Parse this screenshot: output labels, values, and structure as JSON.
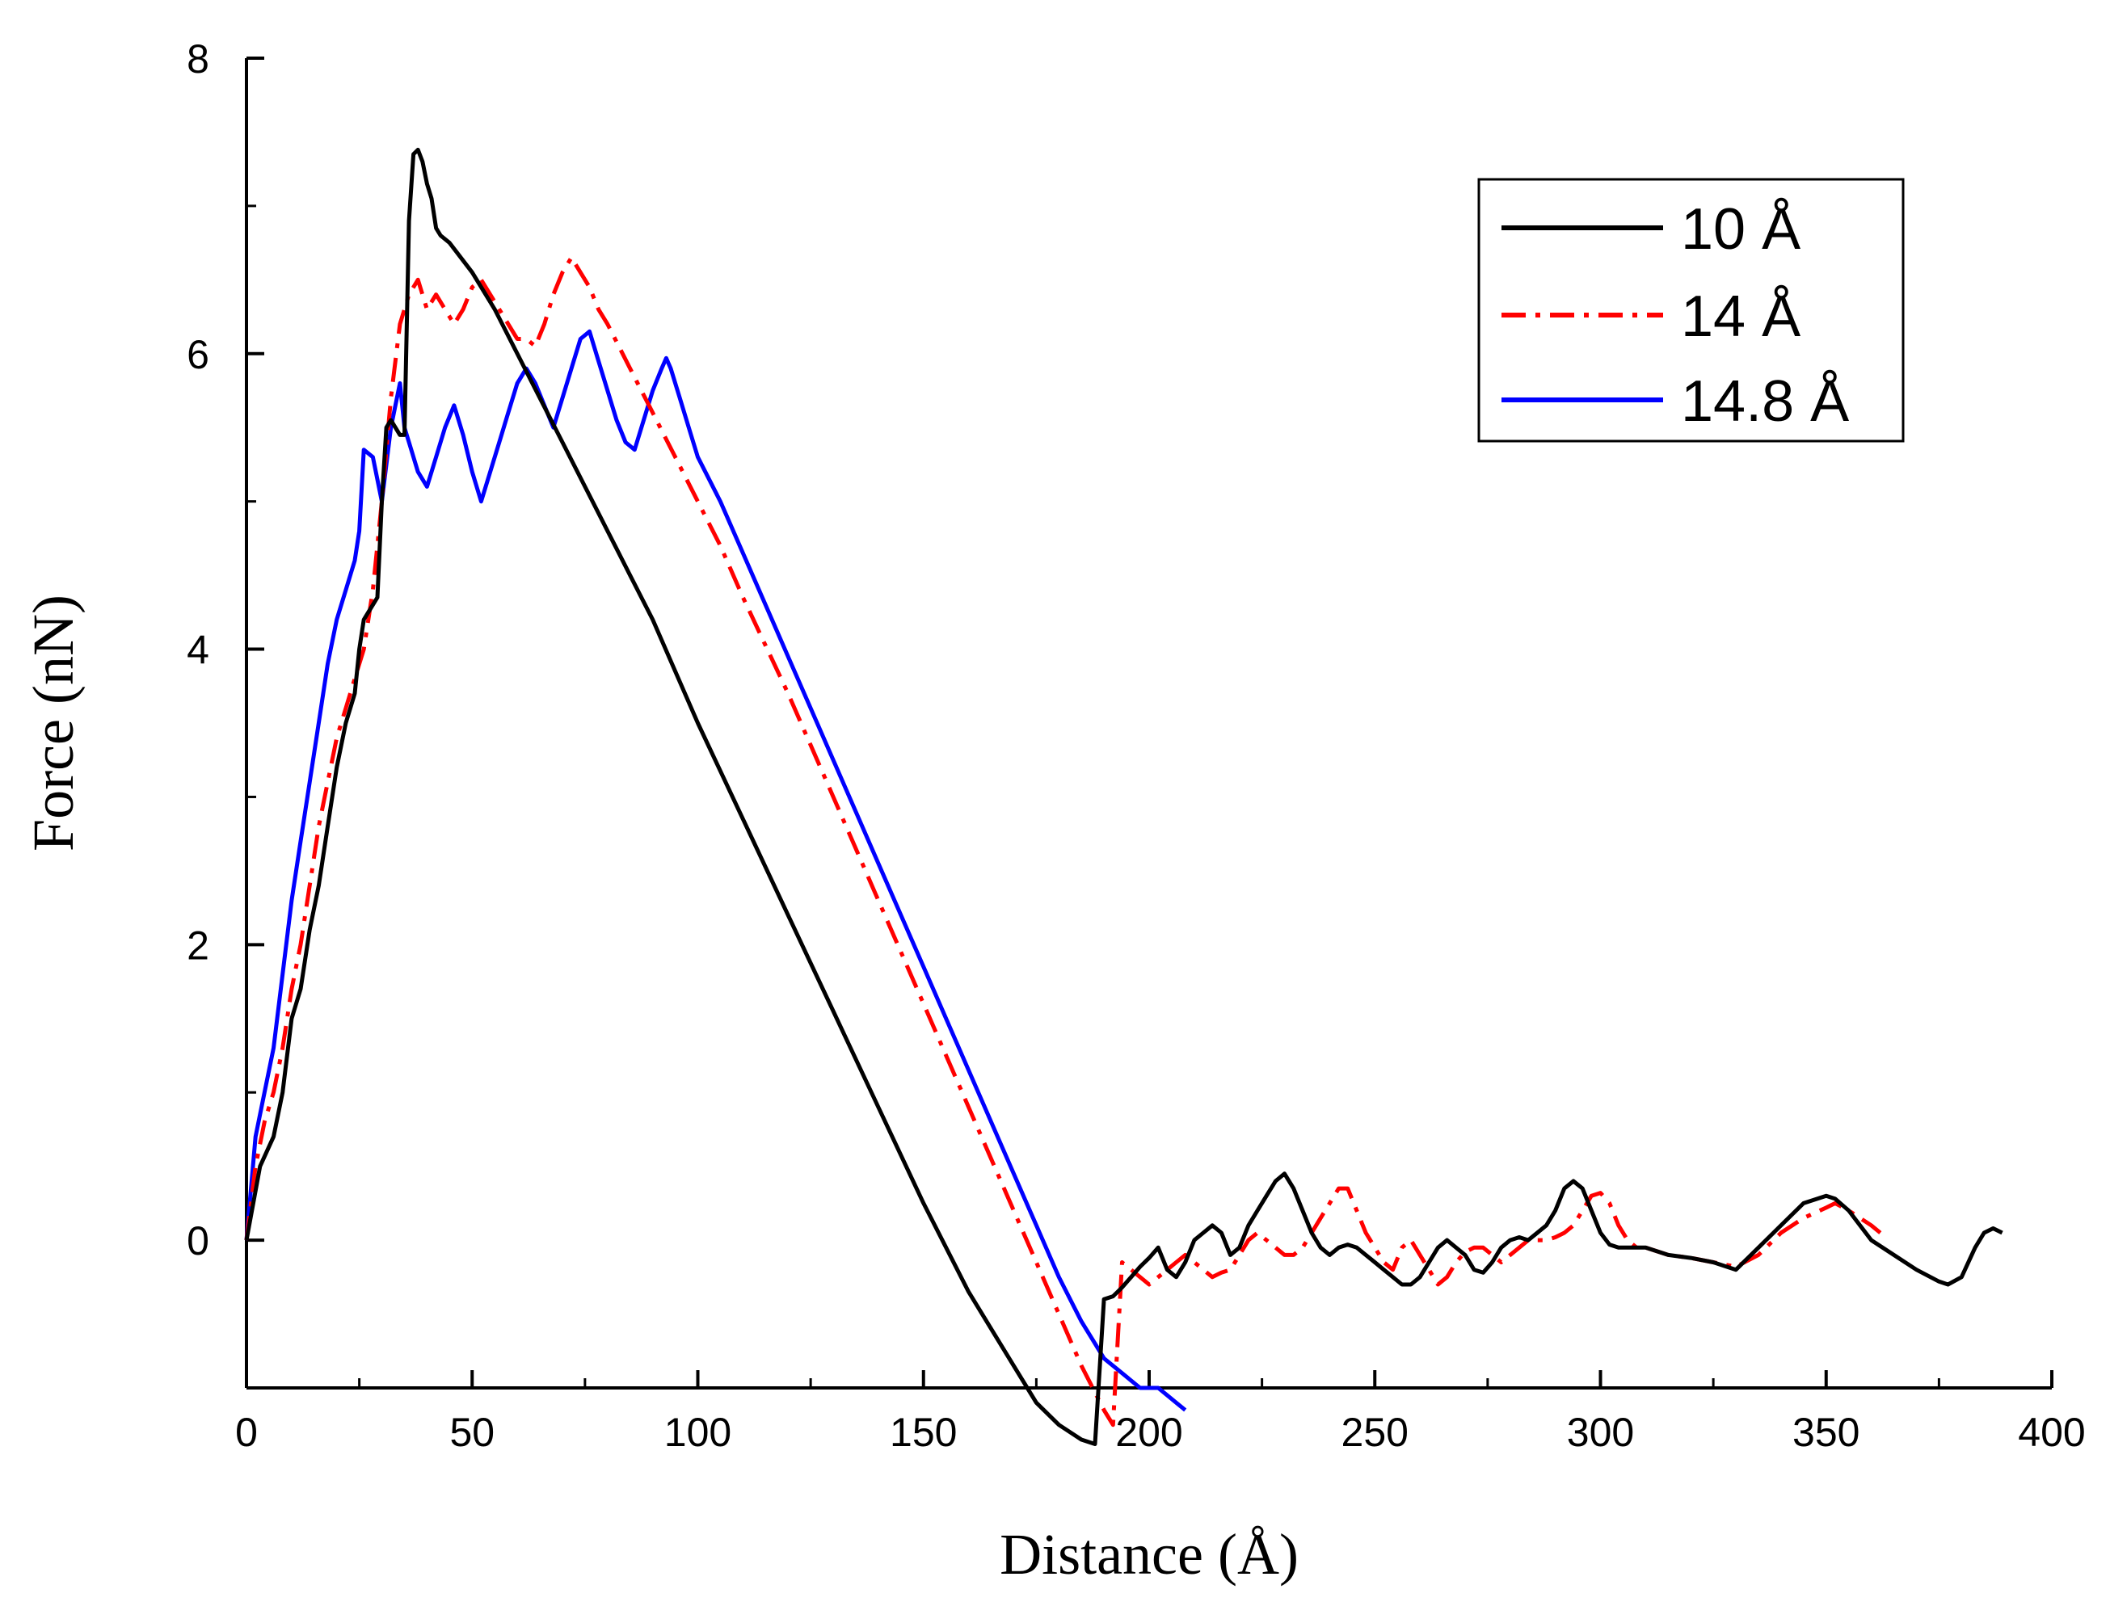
{
  "chart_data": {
    "type": "line",
    "title": "",
    "xlabel": "Distance (Å)",
    "ylabel": "Force (nN)",
    "xlim": [
      0,
      400
    ],
    "ylim": [
      -1,
      8
    ],
    "xticks": [
      0,
      50,
      100,
      150,
      200,
      250,
      300,
      350,
      400
    ],
    "yticks": [
      0,
      2,
      4,
      6,
      8
    ],
    "grid": false,
    "legend_position": "top-right",
    "series": [
      {
        "name": "10 Å",
        "color": "#000000",
        "style": "solid",
        "x": [
          0,
          3,
          6,
          8,
          10,
          12,
          14,
          16,
          18,
          19,
          20,
          22,
          24,
          25,
          26,
          27,
          28,
          29,
          30,
          31,
          32,
          33,
          34,
          35,
          36,
          37,
          38,
          39,
          40,
          41,
          42,
          43,
          45,
          50,
          55,
          60,
          65,
          70,
          75,
          80,
          85,
          90,
          95,
          100,
          110,
          120,
          130,
          140,
          150,
          160,
          170,
          175,
          180,
          185,
          188,
          190,
          192,
          194,
          196,
          198,
          200,
          202,
          204,
          206,
          208,
          210,
          212,
          214,
          216,
          218,
          220,
          222,
          224,
          226,
          228,
          230,
          232,
          234,
          236,
          238,
          240,
          242,
          244,
          246,
          248,
          250,
          252,
          254,
          256,
          258,
          260,
          262,
          264,
          266,
          268,
          270,
          272,
          274,
          276,
          278,
          280,
          282,
          284,
          286,
          288,
          290,
          292,
          294,
          296,
          298,
          300,
          302,
          304,
          306,
          308,
          310,
          315,
          320,
          325,
          330,
          335,
          340,
          345,
          350,
          352,
          355,
          360,
          365,
          370,
          375,
          377,
          380,
          383,
          385,
          387,
          389
        ],
        "y": [
          0,
          0.5,
          0.7,
          1.0,
          1.5,
          1.7,
          2.1,
          2.4,
          2.8,
          3.0,
          3.2,
          3.5,
          3.7,
          4.0,
          4.2,
          4.25,
          4.3,
          4.35,
          5.0,
          5.5,
          5.55,
          5.5,
          5.45,
          5.45,
          6.9,
          7.35,
          7.38,
          7.3,
          7.15,
          7.05,
          6.85,
          6.8,
          6.75,
          6.55,
          6.3,
          6.0,
          5.7,
          5.4,
          5.1,
          4.8,
          4.5,
          4.2,
          3.85,
          3.5,
          2.85,
          2.2,
          1.55,
          0.9,
          0.25,
          -0.35,
          -0.85,
          -1.1,
          -1.25,
          -1.35,
          -1.38,
          -0.4,
          -0.38,
          -0.32,
          -0.25,
          -0.18,
          -0.12,
          -0.05,
          -0.2,
          -0.25,
          -0.15,
          0.0,
          0.05,
          0.1,
          0.05,
          -0.1,
          -0.05,
          0.1,
          0.2,
          0.3,
          0.4,
          0.45,
          0.35,
          0.2,
          0.05,
          -0.05,
          -0.1,
          -0.05,
          -0.03,
          -0.05,
          -0.1,
          -0.15,
          -0.2,
          -0.25,
          -0.3,
          -0.3,
          -0.25,
          -0.15,
          -0.05,
          0.0,
          -0.05,
          -0.1,
          -0.2,
          -0.22,
          -0.15,
          -0.05,
          0.0,
          0.02,
          0.0,
          0.05,
          0.1,
          0.2,
          0.35,
          0.4,
          0.35,
          0.2,
          0.05,
          -0.03,
          -0.05,
          -0.05,
          -0.05,
          -0.05,
          -0.1,
          -0.12,
          -0.15,
          -0.2,
          -0.05,
          0.1,
          0.25,
          0.3,
          0.28,
          0.2,
          0.0,
          -0.1,
          -0.2,
          -0.28,
          -0.3,
          -0.25,
          -0.05,
          0.05,
          0.08,
          0.05
        ],
        "note": ""
      },
      {
        "name": "14 Å",
        "color": "#ff0000",
        "style": "dash-dot",
        "x": [
          0,
          2,
          4,
          6,
          8,
          10,
          12,
          14,
          16,
          18,
          20,
          22,
          24,
          25,
          26,
          28,
          30,
          32,
          34,
          36,
          38,
          40,
          42,
          44,
          46,
          48,
          50,
          52,
          54,
          56,
          58,
          60,
          62,
          64,
          66,
          68,
          70,
          72,
          74,
          76,
          78,
          80,
          85,
          90,
          95,
          100,
          105,
          110,
          120,
          130,
          140,
          150,
          160,
          170,
          175,
          180,
          185,
          190,
          192,
          194,
          196,
          198,
          200,
          202,
          204,
          206,
          208,
          210,
          212,
          214,
          216,
          218,
          220,
          222,
          224,
          226,
          228,
          230,
          232,
          234,
          236,
          238,
          240,
          242,
          244,
          246,
          248,
          250,
          252,
          254,
          256,
          258,
          260,
          262,
          264,
          266,
          268,
          270,
          272,
          274,
          276,
          278,
          280,
          282,
          284,
          286,
          288,
          290,
          292,
          294,
          296,
          298,
          300,
          302,
          304,
          306,
          308,
          310,
          315,
          320,
          325,
          330,
          335,
          340,
          345,
          350,
          352,
          355,
          360,
          362
        ],
        "y": [
          0,
          0.5,
          0.8,
          1.0,
          1.3,
          1.7,
          2.0,
          2.4,
          2.8,
          3.1,
          3.4,
          3.6,
          3.8,
          3.9,
          4.0,
          4.4,
          5.0,
          5.7,
          6.2,
          6.4,
          6.5,
          6.3,
          6.4,
          6.3,
          6.2,
          6.3,
          6.45,
          6.5,
          6.4,
          6.3,
          6.2,
          6.1,
          6.1,
          6.05,
          6.2,
          6.4,
          6.55,
          6.65,
          6.55,
          6.45,
          6.3,
          6.2,
          5.9,
          5.6,
          5.3,
          5.0,
          4.7,
          4.35,
          3.7,
          3.0,
          2.3,
          1.6,
          0.9,
          0.2,
          -0.15,
          -0.5,
          -0.85,
          -1.15,
          -1.25,
          -0.15,
          -0.2,
          -0.25,
          -0.3,
          -0.25,
          -0.2,
          -0.15,
          -0.1,
          -0.15,
          -0.2,
          -0.25,
          -0.22,
          -0.2,
          -0.1,
          0.0,
          0.05,
          0.0,
          -0.05,
          -0.1,
          -0.1,
          -0.05,
          0.05,
          0.15,
          0.25,
          0.35,
          0.35,
          0.2,
          0.05,
          -0.05,
          -0.15,
          -0.2,
          -0.05,
          0.0,
          -0.1,
          -0.2,
          -0.3,
          -0.25,
          -0.15,
          -0.08,
          -0.05,
          -0.05,
          -0.1,
          -0.15,
          -0.1,
          -0.05,
          0.0,
          0.0,
          0.0,
          0.02,
          0.05,
          0.1,
          0.2,
          0.3,
          0.32,
          0.25,
          0.1,
          0.0,
          -0.05,
          -0.05,
          -0.1,
          -0.12,
          -0.15,
          -0.18,
          -0.1,
          0.05,
          0.15,
          0.22,
          0.25,
          0.2,
          0.1,
          0.05
        ]
      },
      {
        "name": "14.8 Å",
        "color": "#0000ff",
        "style": "solid",
        "x": [
          0,
          2,
          4,
          6,
          8,
          10,
          12,
          14,
          16,
          18,
          20,
          22,
          24,
          25,
          26,
          28,
          30,
          32,
          34,
          35,
          36,
          38,
          40,
          42,
          44,
          46,
          48,
          50,
          52,
          54,
          56,
          58,
          60,
          62,
          64,
          66,
          68,
          70,
          72,
          74,
          76,
          78,
          80,
          82,
          84,
          86,
          88,
          90,
          92,
          93,
          94,
          96,
          98,
          100,
          105,
          110,
          120,
          130,
          140,
          150,
          160,
          170,
          175,
          180,
          185,
          188,
          190,
          192,
          194,
          196,
          198,
          200,
          202,
          204,
          206,
          208
        ],
        "y": [
          0,
          0.7,
          1.0,
          1.3,
          1.8,
          2.3,
          2.7,
          3.1,
          3.5,
          3.9,
          4.2,
          4.4,
          4.6,
          4.8,
          5.35,
          5.3,
          5.0,
          5.5,
          5.8,
          5.5,
          5.4,
          5.2,
          5.1,
          5.3,
          5.5,
          5.65,
          5.45,
          5.2,
          5.0,
          5.2,
          5.4,
          5.6,
          5.8,
          5.9,
          5.8,
          5.65,
          5.5,
          5.7,
          5.9,
          6.1,
          6.15,
          5.95,
          5.75,
          5.55,
          5.4,
          5.35,
          5.55,
          5.75,
          5.9,
          5.97,
          5.9,
          5.7,
          5.5,
          5.3,
          5.0,
          4.65,
          3.95,
          3.25,
          2.55,
          1.85,
          1.15,
          0.45,
          0.1,
          -0.25,
          -0.55,
          -0.7,
          -0.8,
          -0.85,
          -0.9,
          -0.95,
          -1.0,
          -1.0,
          -1.0,
          -1.05,
          -1.1,
          -1.15
        ]
      }
    ]
  }
}
